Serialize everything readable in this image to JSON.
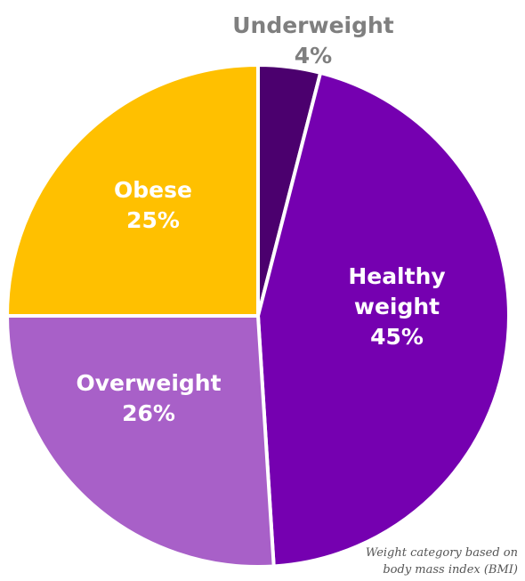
{
  "chart_data": {
    "type": "pie",
    "title": "",
    "slices": [
      {
        "label": [
          "Underweight"
        ],
        "value": 4,
        "value_label": "4%",
        "color": "#4b006e",
        "label_color": "#7f7f7f"
      },
      {
        "label": [
          "Healthy",
          "weight"
        ],
        "value": 45,
        "value_label": "45%",
        "color": "#7500b0",
        "label_color": "#ffffff"
      },
      {
        "label": [
          "Overweight"
        ],
        "value": 26,
        "value_label": "26%",
        "color": "#a860c8",
        "label_color": "#ffffff"
      },
      {
        "label": [
          "Obese"
        ],
        "value": 25,
        "value_label": "25%",
        "color": "#ffc000",
        "label_color": "#ffffff"
      }
    ]
  },
  "note": {
    "line1": "Weight category based on",
    "line2": "body mass index (BMI)"
  }
}
